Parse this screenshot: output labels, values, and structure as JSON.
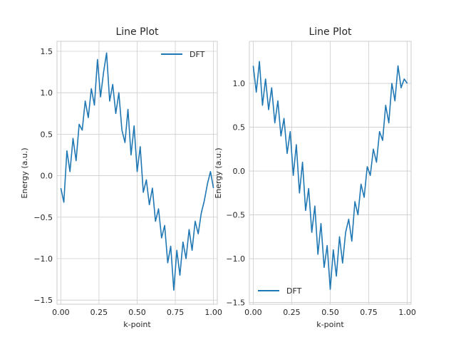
{
  "chart_data": [
    {
      "type": "line",
      "title": "Line Plot",
      "xlabel": "k-point",
      "ylabel": "Energy (a.u.)",
      "xlim": [
        -0.025,
        1.025
      ],
      "ylim": [
        -1.55,
        1.62
      ],
      "xticks": [
        0.0,
        0.25,
        0.5,
        0.75,
        1.0
      ],
      "xtick_labels": [
        "0.00",
        "0.25",
        "0.50",
        "0.75",
        "1.00"
      ],
      "yticks": [
        -1.5,
        -1.0,
        -0.5,
        0.0,
        0.5,
        1.0,
        1.5
      ],
      "ytick_labels": [
        "−1.5",
        "−1.0",
        "−0.5",
        "0.0",
        "0.5",
        "1.0",
        "1.5"
      ],
      "grid": true,
      "legend": "upper right",
      "series": [
        {
          "name": "DFT",
          "color": "#1f77b4",
          "x": [
            0.0,
            0.02,
            0.04,
            0.06,
            0.08,
            0.1,
            0.12,
            0.14,
            0.16,
            0.18,
            0.2,
            0.22,
            0.24,
            0.26,
            0.28,
            0.3,
            0.32,
            0.34,
            0.36,
            0.38,
            0.4,
            0.42,
            0.44,
            0.46,
            0.48,
            0.5,
            0.52,
            0.54,
            0.56,
            0.58,
            0.6,
            0.62,
            0.64,
            0.66,
            0.68,
            0.7,
            0.72,
            0.74,
            0.76,
            0.78,
            0.8,
            0.82,
            0.84,
            0.86,
            0.88,
            0.9,
            0.92,
            0.94,
            0.96,
            0.98,
            1.0
          ],
          "y": [
            -0.15,
            -0.32,
            0.3,
            0.05,
            0.45,
            0.18,
            0.62,
            0.55,
            0.9,
            0.7,
            1.05,
            0.85,
            1.4,
            0.95,
            1.25,
            1.48,
            0.9,
            1.1,
            0.75,
            1.0,
            0.55,
            0.4,
            0.8,
            0.25,
            0.6,
            0.05,
            0.35,
            -0.2,
            -0.05,
            -0.35,
            -0.15,
            -0.55,
            -0.4,
            -0.75,
            -0.6,
            -1.05,
            -0.85,
            -1.38,
            -0.9,
            -1.2,
            -0.8,
            -1.0,
            -0.65,
            -0.9,
            -0.55,
            -0.7,
            -0.45,
            -0.3,
            -0.1,
            0.05,
            -0.15
          ]
        }
      ]
    },
    {
      "type": "line",
      "title": "Line Plot",
      "xlabel": "k-point",
      "ylabel": "Energy (a.u.)",
      "xlim": [
        -0.025,
        1.025
      ],
      "ylim": [
        -1.52,
        1.48
      ],
      "xticks": [
        0.0,
        0.25,
        0.5,
        0.75,
        1.0
      ],
      "xtick_labels": [
        "0.00",
        "0.25",
        "0.50",
        "0.75",
        "1.00"
      ],
      "yticks": [
        -1.5,
        -1.0,
        -0.5,
        0.0,
        0.5,
        1.0
      ],
      "ytick_labels": [
        "−1.5",
        "−1.0",
        "−0.5",
        "0.0",
        "0.5",
        "1.0"
      ],
      "grid": true,
      "legend": "lower left",
      "series": [
        {
          "name": "DFT",
          "color": "#1f77b4",
          "x": [
            0.0,
            0.02,
            0.04,
            0.06,
            0.08,
            0.1,
            0.12,
            0.14,
            0.16,
            0.18,
            0.2,
            0.22,
            0.24,
            0.26,
            0.28,
            0.3,
            0.32,
            0.34,
            0.36,
            0.38,
            0.4,
            0.42,
            0.44,
            0.46,
            0.48,
            0.5,
            0.52,
            0.54,
            0.56,
            0.58,
            0.6,
            0.62,
            0.64,
            0.66,
            0.68,
            0.7,
            0.72,
            0.74,
            0.76,
            0.78,
            0.8,
            0.82,
            0.84,
            0.86,
            0.88,
            0.9,
            0.92,
            0.94,
            0.96,
            0.98,
            1.0
          ],
          "y": [
            1.2,
            0.9,
            1.25,
            0.75,
            1.05,
            0.7,
            0.95,
            0.55,
            0.8,
            0.4,
            0.6,
            0.2,
            0.45,
            -0.05,
            0.3,
            -0.25,
            0.1,
            -0.45,
            -0.2,
            -0.7,
            -0.4,
            -0.95,
            -0.6,
            -1.1,
            -0.85,
            -1.35,
            -0.9,
            -1.2,
            -0.75,
            -1.05,
            -0.7,
            -0.55,
            -0.8,
            -0.35,
            -0.5,
            -0.15,
            -0.3,
            0.05,
            -0.05,
            0.25,
            0.1,
            0.45,
            0.35,
            0.75,
            0.55,
            1.0,
            0.8,
            1.2,
            0.95,
            1.05,
            1.0
          ]
        }
      ]
    }
  ]
}
